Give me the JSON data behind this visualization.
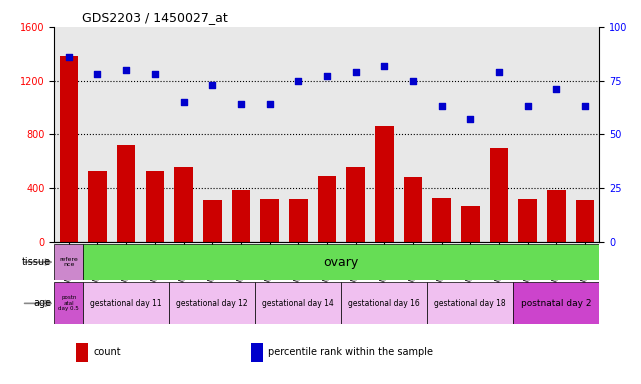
{
  "title": "GDS2203 / 1450027_at",
  "samples": [
    "GSM120857",
    "GSM120854",
    "GSM120855",
    "GSM120856",
    "GSM120851",
    "GSM120852",
    "GSM120853",
    "GSM120848",
    "GSM120849",
    "GSM120850",
    "GSM120845",
    "GSM120846",
    "GSM120847",
    "GSM120842",
    "GSM120843",
    "GSM120844",
    "GSM120839",
    "GSM120840",
    "GSM120841"
  ],
  "counts": [
    1380,
    530,
    720,
    530,
    560,
    310,
    390,
    320,
    320,
    490,
    560,
    860,
    480,
    330,
    270,
    700,
    320,
    390,
    310
  ],
  "percentiles": [
    86,
    78,
    80,
    78,
    65,
    73,
    64,
    64,
    75,
    77,
    79,
    82,
    75,
    63,
    57,
    79,
    63,
    71,
    63
  ],
  "ylim_left": [
    0,
    1600
  ],
  "ylim_right": [
    0,
    100
  ],
  "yticks_left": [
    0,
    400,
    800,
    1200,
    1600
  ],
  "yticks_right": [
    0,
    25,
    50,
    75,
    100
  ],
  "bar_color": "#cc0000",
  "scatter_color": "#0000cc",
  "bg_color": "#e8e8e8",
  "dotted_lines": [
    400,
    800,
    1200
  ],
  "tissue_first_text": "refere\nnce",
  "tissue_first_color": "#cc88cc",
  "tissue_rest_text": "ovary",
  "tissue_rest_color": "#66dd55",
  "age_first_text": "postn\natal\nday 0.5",
  "age_first_color": "#cc55cc",
  "age_groups": [
    {
      "text": "gestational day 11",
      "count": 3,
      "color": "#f0c0f0"
    },
    {
      "text": "gestational day 12",
      "count": 3,
      "color": "#f0c0f0"
    },
    {
      "text": "gestational day 14",
      "count": 3,
      "color": "#f0c0f0"
    },
    {
      "text": "gestational day 16",
      "count": 3,
      "color": "#f0c0f0"
    },
    {
      "text": "gestational day 18",
      "count": 3,
      "color": "#f0c0f0"
    },
    {
      "text": "postnatal day 2",
      "count": 3,
      "color": "#cc44cc"
    }
  ],
  "legend_items": [
    {
      "color": "#cc0000",
      "label": "count"
    },
    {
      "color": "#0000cc",
      "label": "percentile rank within the sample"
    }
  ]
}
